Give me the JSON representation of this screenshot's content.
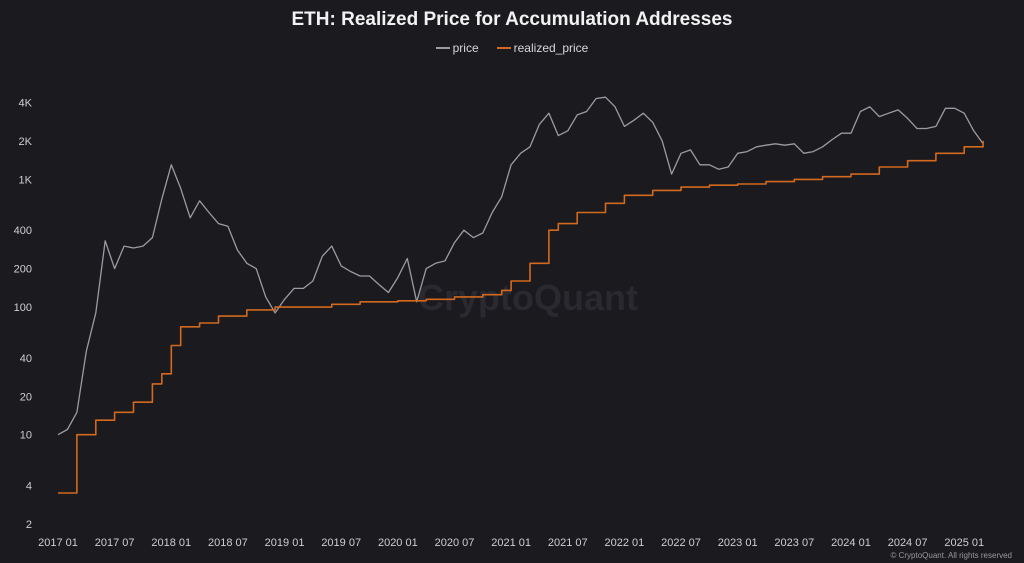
{
  "chart_data": {
    "type": "line",
    "title": "ETH: Realized Price for Accumulation Addresses",
    "xlabel": "",
    "ylabel": "",
    "y_scale": "log",
    "ylim": [
      2,
      6000
    ],
    "xlim": [
      "2017-01",
      "2025-05"
    ],
    "grid": false,
    "legend_position": "top-center",
    "y_ticks": [
      "2",
      "4",
      "10",
      "20",
      "40",
      "100",
      "200",
      "400",
      "1K",
      "2K",
      "4K"
    ],
    "x_ticks": [
      "2017 01",
      "2017 07",
      "2018 01",
      "2018 07",
      "2019 01",
      "2019 07",
      "2020 01",
      "2020 07",
      "2021 01",
      "2021 07",
      "2022 01",
      "2022 07",
      "2023 01",
      "2023 07",
      "2024 01",
      "2024 07",
      "2025 01"
    ],
    "series": [
      {
        "name": "price",
        "color": "#9b9ba1",
        "x": [
          "2017-01",
          "2017-02",
          "2017-03",
          "2017-04",
          "2017-05",
          "2017-06",
          "2017-07",
          "2017-08",
          "2017-09",
          "2017-10",
          "2017-11",
          "2017-12",
          "2018-01",
          "2018-02",
          "2018-03",
          "2018-04",
          "2018-05",
          "2018-06",
          "2018-07",
          "2018-08",
          "2018-09",
          "2018-10",
          "2018-11",
          "2018-12",
          "2019-01",
          "2019-02",
          "2019-03",
          "2019-04",
          "2019-05",
          "2019-06",
          "2019-07",
          "2019-08",
          "2019-09",
          "2019-10",
          "2019-11",
          "2019-12",
          "2020-01",
          "2020-02",
          "2020-03",
          "2020-04",
          "2020-05",
          "2020-06",
          "2020-07",
          "2020-08",
          "2020-09",
          "2020-10",
          "2020-11",
          "2020-12",
          "2021-01",
          "2021-02",
          "2021-03",
          "2021-04",
          "2021-05",
          "2021-06",
          "2021-07",
          "2021-08",
          "2021-09",
          "2021-10",
          "2021-11",
          "2021-12",
          "2022-01",
          "2022-02",
          "2022-03",
          "2022-04",
          "2022-05",
          "2022-06",
          "2022-07",
          "2022-08",
          "2022-09",
          "2022-10",
          "2022-11",
          "2022-12",
          "2023-01",
          "2023-02",
          "2023-03",
          "2023-04",
          "2023-05",
          "2023-06",
          "2023-07",
          "2023-08",
          "2023-09",
          "2023-10",
          "2023-11",
          "2023-12",
          "2024-01",
          "2024-02",
          "2024-03",
          "2024-04",
          "2024-05",
          "2024-06",
          "2024-07",
          "2024-08",
          "2024-09",
          "2024-10",
          "2024-11",
          "2024-12",
          "2025-01",
          "2025-02",
          "2025-03"
        ],
        "values": [
          10,
          11,
          15,
          45,
          90,
          330,
          200,
          300,
          290,
          300,
          350,
          700,
          1300,
          850,
          500,
          680,
          550,
          450,
          430,
          280,
          220,
          200,
          120,
          90,
          115,
          140,
          140,
          160,
          250,
          300,
          210,
          190,
          175,
          175,
          150,
          130,
          170,
          240,
          110,
          200,
          220,
          230,
          320,
          400,
          350,
          380,
          550,
          730,
          1300,
          1600,
          1800,
          2700,
          3300,
          2200,
          2400,
          3200,
          3400,
          4300,
          4400,
          3700,
          2600,
          2900,
          3300,
          2800,
          2000,
          1100,
          1600,
          1700,
          1300,
          1300,
          1200,
          1250,
          1600,
          1650,
          1800,
          1850,
          1900,
          1850,
          1900,
          1600,
          1650,
          1800,
          2050,
          2300,
          2300,
          3400,
          3700,
          3100,
          3300,
          3500,
          3000,
          2500,
          2500,
          2600,
          3600,
          3600,
          3300,
          2400,
          1900
        ]
      },
      {
        "name": "realized_price",
        "color": "#d2691e",
        "x": [
          "2017-01",
          "2017-03",
          "2017-03",
          "2017-04",
          "2017-05",
          "2017-07",
          "2017-09",
          "2017-11",
          "2017-12",
          "2018-01",
          "2018-02",
          "2018-04",
          "2018-06",
          "2018-09",
          "2018-12",
          "2019-06",
          "2019-09",
          "2020-01",
          "2020-04",
          "2020-07",
          "2020-10",
          "2020-12",
          "2021-01",
          "2021-03",
          "2021-05",
          "2021-06",
          "2021-08",
          "2021-11",
          "2022-01",
          "2022-04",
          "2022-07",
          "2022-10",
          "2023-01",
          "2023-04",
          "2023-07",
          "2023-10",
          "2024-01",
          "2024-04",
          "2024-07",
          "2024-10",
          "2025-01",
          "2025-03"
        ],
        "values": [
          3.5,
          3.5,
          10,
          10,
          13,
          15,
          18,
          25,
          30,
          50,
          70,
          75,
          85,
          95,
          100,
          105,
          110,
          112,
          115,
          120,
          125,
          135,
          160,
          220,
          400,
          450,
          550,
          650,
          750,
          820,
          870,
          900,
          920,
          960,
          1000,
          1050,
          1100,
          1250,
          1400,
          1600,
          1800,
          2000
        ]
      }
    ]
  },
  "legend": {
    "price": "price",
    "realized_price": "realized_price"
  },
  "watermark": "CryptoQuant",
  "copyright": "© CryptoQuant. All rights reserved"
}
